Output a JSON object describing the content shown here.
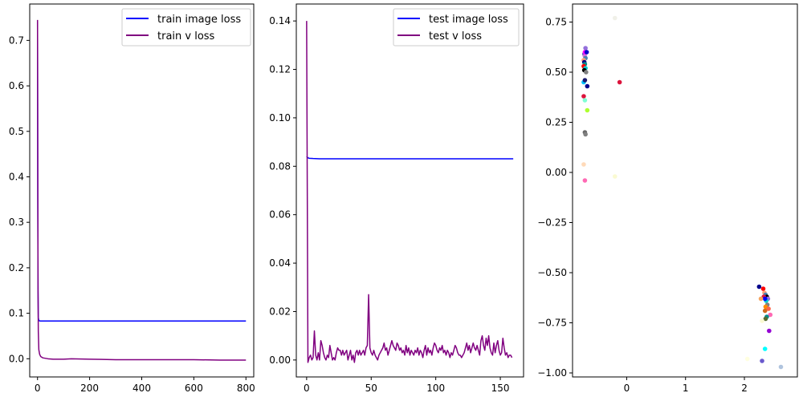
{
  "chart_data": [
    {
      "type": "line",
      "xlim": [
        -30,
        830
      ],
      "ylim": [
        -0.04,
        0.78
      ],
      "xticks": [
        0,
        200,
        400,
        600,
        800
      ],
      "xtick_labels": [
        "0",
        "200",
        "400",
        "600",
        "800"
      ],
      "yticks": [
        0.0,
        0.1,
        0.2,
        0.3,
        0.4,
        0.5,
        0.6,
        0.7
      ],
      "ytick_labels": [
        "0.0",
        "0.1",
        "0.2",
        "0.3",
        "0.4",
        "0.5",
        "0.6",
        "0.7"
      ],
      "legend_position": "top-right",
      "series": [
        {
          "name": "train image loss",
          "color": "#0000ff",
          "x": [
            0,
            1,
            2,
            3,
            5,
            10,
            100,
            200,
            400,
            600,
            800
          ],
          "y": [
            0.74,
            0.35,
            0.15,
            0.09,
            0.084,
            0.083,
            0.083,
            0.083,
            0.083,
            0.083,
            0.083
          ]
        },
        {
          "name": "train v loss",
          "color": "#800080",
          "x": [
            0,
            1,
            2,
            3,
            5,
            8,
            12,
            20,
            40,
            60,
            100,
            130,
            200,
            300,
            400,
            500,
            600,
            700,
            800
          ],
          "y": [
            0.745,
            0.4,
            0.15,
            0.06,
            0.02,
            0.01,
            0.005,
            0.002,
            0.0,
            -0.001,
            -0.001,
            0.0,
            -0.001,
            -0.002,
            -0.002,
            -0.002,
            -0.002,
            -0.003,
            -0.003
          ]
        }
      ]
    },
    {
      "type": "line",
      "xlim": [
        -8,
        168
      ],
      "ylim": [
        -0.007,
        0.147
      ],
      "xticks": [
        0,
        50,
        100,
        150
      ],
      "xtick_labels": [
        "0",
        "50",
        "100",
        "150"
      ],
      "yticks": [
        0.0,
        0.02,
        0.04,
        0.06,
        0.08,
        0.1,
        0.12,
        0.14
      ],
      "ytick_labels": [
        "0.00",
        "0.02",
        "0.04",
        "0.06",
        "0.08",
        "0.10",
        "0.12",
        "0.14"
      ],
      "legend_position": "top-right",
      "series": [
        {
          "name": "test image loss",
          "color": "#0000ff",
          "x": [
            0,
            1,
            2,
            5,
            10,
            160
          ],
          "y": [
            0.084,
            0.0835,
            0.0833,
            0.0832,
            0.0831,
            0.0831
          ]
        },
        {
          "name": "test v loss",
          "color": "#800080",
          "x": [
            0,
            1,
            2,
            3,
            4,
            5,
            6,
            7,
            8,
            9,
            10,
            11,
            12,
            13,
            14,
            15,
            16,
            17,
            18,
            19,
            20,
            21,
            22,
            23,
            24,
            25,
            26,
            27,
            28,
            29,
            30,
            31,
            32,
            33,
            34,
            35,
            36,
            37,
            38,
            39,
            40,
            41,
            42,
            43,
            44,
            45,
            46,
            47,
            48,
            49,
            50,
            51,
            52,
            53,
            54,
            55,
            56,
            57,
            58,
            59,
            60,
            61,
            62,
            63,
            64,
            65,
            66,
            67,
            68,
            69,
            70,
            71,
            72,
            73,
            74,
            75,
            76,
            77,
            78,
            79,
            80,
            81,
            82,
            83,
            84,
            85,
            86,
            87,
            88,
            89,
            90,
            91,
            92,
            93,
            94,
            95,
            96,
            97,
            98,
            99,
            100,
            101,
            102,
            103,
            104,
            105,
            106,
            107,
            108,
            109,
            110,
            111,
            112,
            113,
            114,
            115,
            116,
            117,
            118,
            119,
            120,
            121,
            122,
            123,
            124,
            125,
            126,
            127,
            128,
            129,
            130,
            131,
            132,
            133,
            134,
            135,
            136,
            137,
            138,
            139,
            140,
            141,
            142,
            143,
            144,
            145,
            146,
            147,
            148,
            149,
            150,
            151,
            152,
            153,
            154,
            155,
            156,
            157,
            158,
            159
          ],
          "y": [
            0.14,
            -0.001,
            0.001,
            0.002,
            0.0,
            0.001,
            0.012,
            0.002,
            0.0,
            0.003,
            0.0,
            0.008,
            0.006,
            0.003,
            0.001,
            0.0,
            0.002,
            0.001,
            0.006,
            0.003,
            0.0,
            0.001,
            0.0,
            0.003,
            0.005,
            0.004,
            0.004,
            0.002,
            0.004,
            0.002,
            0.003,
            0.004,
            0.0,
            0.002,
            0.004,
            0.0,
            0.002,
            -0.001,
            0.003,
            0.004,
            0.002,
            0.004,
            0.002,
            0.003,
            0.004,
            0.002,
            0.005,
            0.006,
            0.027,
            0.005,
            0.003,
            0.002,
            0.004,
            0.002,
            0.001,
            0.0,
            0.002,
            0.003,
            0.004,
            0.005,
            0.007,
            0.004,
            0.005,
            0.002,
            0.004,
            0.006,
            0.008,
            0.006,
            0.005,
            0.004,
            0.007,
            0.006,
            0.004,
            0.005,
            0.003,
            0.004,
            0.002,
            0.006,
            0.003,
            0.005,
            0.002,
            0.004,
            0.003,
            0.002,
            0.004,
            0.003,
            0.005,
            0.002,
            0.004,
            0.003,
            0.001,
            0.004,
            0.006,
            0.002,
            0.005,
            0.003,
            0.004,
            0.002,
            0.005,
            0.007,
            0.006,
            0.004,
            0.003,
            0.005,
            0.004,
            0.006,
            0.003,
            0.004,
            0.002,
            0.004,
            0.003,
            0.001,
            0.003,
            0.002,
            0.004,
            0.006,
            0.005,
            0.003,
            0.002,
            0.002,
            0.001,
            0.002,
            0.003,
            0.005,
            0.007,
            0.004,
            0.006,
            0.003,
            0.005,
            0.007,
            0.005,
            0.004,
            0.006,
            0.004,
            0.002,
            0.008,
            0.01,
            0.006,
            0.004,
            0.009,
            0.006,
            0.01,
            0.005,
            0.003,
            0.002,
            0.007,
            0.003,
            0.006,
            0.008,
            0.004,
            0.002,
            0.003,
            0.009,
            0.005,
            0.002,
            0.003,
            0.001,
            0.002,
            0.002,
            0.001
          ]
        }
      ]
    },
    {
      "type": "scatter",
      "xlim": [
        -0.92,
        2.9
      ],
      "ylim": [
        -1.02,
        0.84
      ],
      "xticks": [
        0,
        1,
        2
      ],
      "xtick_labels": [
        "0",
        "1",
        "2"
      ],
      "yticks": [
        0.75,
        0.5,
        0.25,
        0.0,
        -0.25,
        -0.5,
        -0.75,
        -1.0
      ],
      "ytick_labels": [
        "0.75",
        "0.50",
        "0.25",
        "0.00",
        "−0.25",
        "−0.50",
        "−0.75",
        "−1.00"
      ],
      "points": [
        {
          "x": -0.2,
          "y": 0.77,
          "color": "#f0f0e8"
        },
        {
          "x": -0.7,
          "y": 0.62,
          "color": "#9370db"
        },
        {
          "x": -0.69,
          "y": 0.6,
          "color": "#ff69b4"
        },
        {
          "x": -0.72,
          "y": 0.59,
          "color": "#6a5acd"
        },
        {
          "x": -0.71,
          "y": 0.58,
          "color": "#da70d6"
        },
        {
          "x": -0.7,
          "y": 0.57,
          "color": "#4682b4"
        },
        {
          "x": -0.73,
          "y": 0.56,
          "color": "#ffa07a"
        },
        {
          "x": -0.72,
          "y": 0.55,
          "color": "#000080"
        },
        {
          "x": -0.71,
          "y": 0.54,
          "color": "#008b8b"
        },
        {
          "x": -0.73,
          "y": 0.53,
          "color": "#ff0000"
        },
        {
          "x": -0.7,
          "y": 0.52,
          "color": "#00ced1"
        },
        {
          "x": -0.72,
          "y": 0.51,
          "color": "#000000"
        },
        {
          "x": -0.69,
          "y": 0.5,
          "color": "#808080"
        },
        {
          "x": -0.71,
          "y": 0.6,
          "color": "#ff00ff"
        },
        {
          "x": -0.68,
          "y": 0.6,
          "color": "#0000cd"
        },
        {
          "x": -0.73,
          "y": 0.45,
          "color": "#00bfff"
        },
        {
          "x": -0.71,
          "y": 0.46,
          "color": "#191970"
        },
        {
          "x": -0.67,
          "y": 0.43,
          "color": "#00008b"
        },
        {
          "x": -0.12,
          "y": 0.45,
          "color": "#dc143c"
        },
        {
          "x": -0.73,
          "y": 0.38,
          "color": "#dc143c"
        },
        {
          "x": -0.71,
          "y": 0.36,
          "color": "#7fffd4"
        },
        {
          "x": -0.67,
          "y": 0.31,
          "color": "#adff2f"
        },
        {
          "x": -0.71,
          "y": 0.2,
          "color": "#696969"
        },
        {
          "x": -0.7,
          "y": 0.19,
          "color": "#808080"
        },
        {
          "x": -0.73,
          "y": 0.04,
          "color": "#ffdab9"
        },
        {
          "x": -0.2,
          "y": -0.02,
          "color": "#fafad2"
        },
        {
          "x": -0.71,
          "y": -0.04,
          "color": "#ff69b4"
        },
        {
          "x": 2.25,
          "y": -0.57,
          "color": "#00008b"
        },
        {
          "x": 2.32,
          "y": -0.58,
          "color": "#ff0000"
        },
        {
          "x": 2.34,
          "y": -0.6,
          "color": "#ffa07a"
        },
        {
          "x": 2.36,
          "y": -0.61,
          "color": "#4682b4"
        },
        {
          "x": 2.38,
          "y": -0.62,
          "color": "#000000"
        },
        {
          "x": 2.33,
          "y": -0.62,
          "color": "#dc143c"
        },
        {
          "x": 2.4,
          "y": -0.63,
          "color": "#9370db"
        },
        {
          "x": 2.37,
          "y": -0.64,
          "color": "#00ced1"
        },
        {
          "x": 2.35,
          "y": -0.63,
          "color": "#0000ff"
        },
        {
          "x": 2.28,
          "y": -0.63,
          "color": "#f4a460"
        },
        {
          "x": 2.39,
          "y": -0.66,
          "color": "#808080"
        },
        {
          "x": 2.36,
          "y": -0.67,
          "color": "#ff8c00"
        },
        {
          "x": 2.41,
          "y": -0.68,
          "color": "#ff6347"
        },
        {
          "x": 2.35,
          "y": -0.69,
          "color": "#d2691e"
        },
        {
          "x": 2.44,
          "y": -0.71,
          "color": "#ff69b4"
        },
        {
          "x": 2.38,
          "y": -0.72,
          "color": "#008b8b"
        },
        {
          "x": 2.36,
          "y": -0.73,
          "color": "#556b2f"
        },
        {
          "x": 2.3,
          "y": -0.74,
          "color": "#fafad2"
        },
        {
          "x": 2.42,
          "y": -0.79,
          "color": "#9400d3"
        },
        {
          "x": 2.35,
          "y": -0.88,
          "color": "#00ffff"
        },
        {
          "x": 2.05,
          "y": -0.93,
          "color": "#ffffe0"
        },
        {
          "x": 2.3,
          "y": -0.94,
          "color": "#6a5acd"
        },
        {
          "x": 2.62,
          "y": -0.97,
          "color": "#b0c4de"
        }
      ]
    }
  ]
}
